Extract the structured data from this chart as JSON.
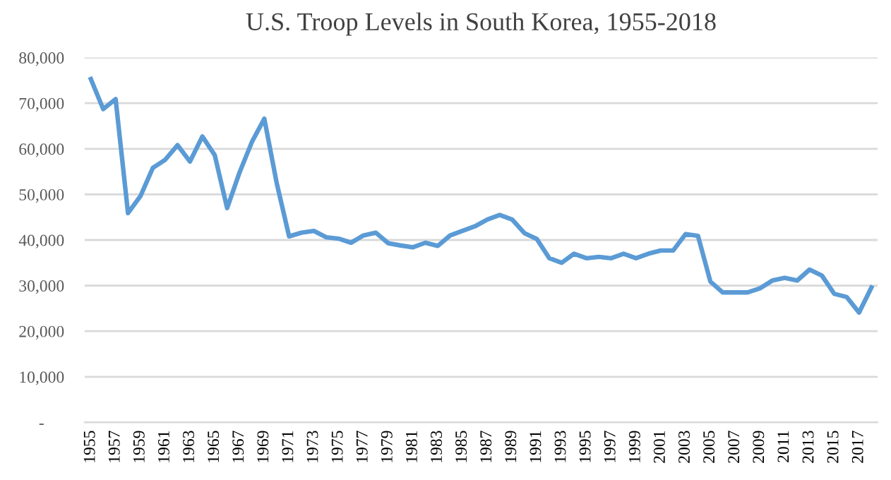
{
  "chart_data": {
    "type": "line",
    "title": "U.S. Troop Levels in South Korea, 1955-2018",
    "categories": [
      "1955",
      null,
      "1957",
      null,
      "1959",
      null,
      "1961",
      null,
      "1963",
      null,
      "1965",
      null,
      "1967",
      null,
      "1969",
      null,
      "1971",
      null,
      "1973",
      null,
      "1975",
      null,
      "1977",
      null,
      "1979",
      null,
      "1981",
      null,
      "1983",
      null,
      "1985",
      null,
      "1987",
      null,
      "1989",
      null,
      "1991",
      null,
      "1993",
      null,
      "1995",
      null,
      "1997",
      null,
      "1999",
      null,
      "2001",
      null,
      "2003",
      null,
      "2005",
      null,
      "2007",
      null,
      "2009",
      null,
      "2011",
      null,
      "2013",
      null,
      "2015",
      null,
      "2017",
      null
    ],
    "series": [
      {
        "color": "#5b9bd5",
        "values": [
          75300,
          68700,
          70900,
          45900,
          49600,
          55800,
          57600,
          60800,
          57200,
          62700,
          58600,
          47000,
          54800,
          61500,
          66600,
          52500,
          40800,
          41600,
          42000,
          40600,
          40300,
          39400,
          41000,
          41600,
          39300,
          38800,
          38400,
          39400,
          38700,
          41000,
          42000,
          43000,
          44500,
          45500,
          44500,
          41500,
          40200,
          36000,
          35000,
          37000,
          36000,
          36300,
          36000,
          37000,
          36000,
          37000,
          37700,
          37700,
          41300,
          40900,
          30900,
          28500,
          28500,
          28500,
          29400,
          31100,
          31700,
          31100,
          33500,
          32200,
          28200,
          27500,
          24100,
          29600
        ]
      }
    ],
    "ylim": [
      0,
      80000
    ],
    "yticks": [
      {
        "value": 0,
        "label": "-"
      },
      {
        "value": 10000,
        "label": "10,000"
      },
      {
        "value": 20000,
        "label": "20,000"
      },
      {
        "value": 30000,
        "label": "30,000"
      },
      {
        "value": 40000,
        "label": "40,000"
      },
      {
        "value": 50000,
        "label": "50,000"
      },
      {
        "value": 60000,
        "label": "60,000"
      },
      {
        "value": 70000,
        "label": "70,000"
      },
      {
        "value": 80000,
        "label": "80,000"
      }
    ],
    "grid": "y",
    "marker": "none",
    "line_style": "solid"
  }
}
